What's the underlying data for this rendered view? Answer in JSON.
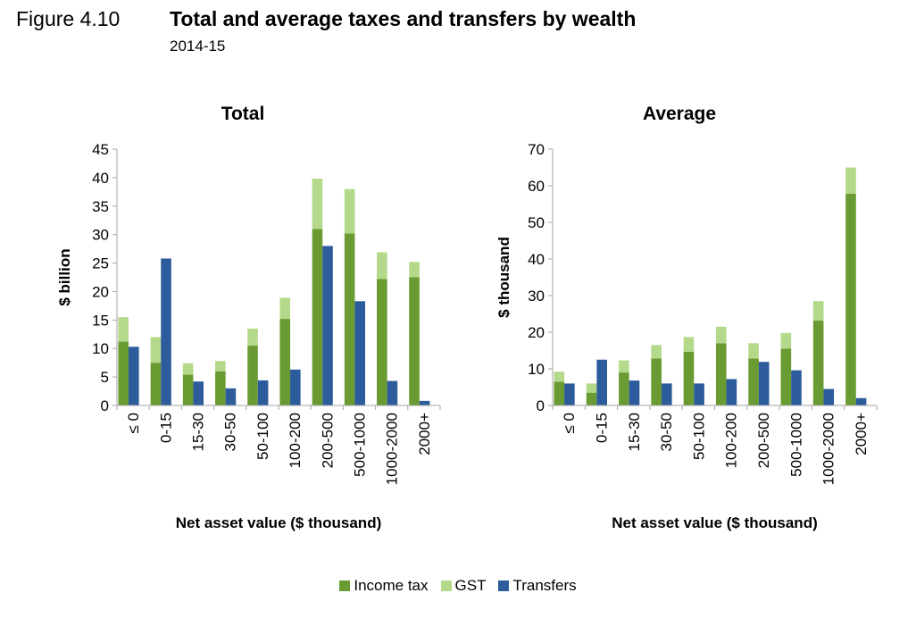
{
  "header": {
    "figure_label": "Figure 4.10",
    "title": "Total and average taxes and transfers by wealth",
    "subtitle": "2014-15"
  },
  "colors": {
    "income_tax": "#6a9a32",
    "gst": "#b5d98a",
    "transfers": "#2c5c9c",
    "axis": "#a6a6a6"
  },
  "legend": [
    {
      "label": "Income tax",
      "color_key": "income_tax"
    },
    {
      "label": "GST",
      "color_key": "gst"
    },
    {
      "label": "Transfers",
      "color_key": "transfers"
    }
  ],
  "chart_data": [
    {
      "type": "bar",
      "stacked_pairs": true,
      "title": "Total",
      "xlabel": "Net asset value ($ thousand)",
      "ylabel": "$ billion",
      "ylim": [
        0,
        45
      ],
      "yticks": [
        0,
        5,
        10,
        15,
        20,
        25,
        30,
        35,
        40,
        45
      ],
      "categories": [
        "≤ 0",
        "0-15",
        "15-30",
        "30-50",
        "50-100",
        "100-200",
        "200-500",
        "500-1000",
        "1000-2000",
        "2000+"
      ],
      "series": [
        {
          "name": "Income tax",
          "values": [
            11.2,
            7.5,
            5.4,
            6.0,
            10.5,
            15.2,
            31.0,
            30.2,
            22.2,
            22.5
          ]
        },
        {
          "name": "GST",
          "values": [
            4.3,
            4.5,
            2.0,
            1.8,
            3.0,
            3.7,
            8.8,
            7.8,
            4.7,
            2.7
          ]
        },
        {
          "name": "Transfers",
          "values": [
            10.3,
            25.8,
            4.2,
            3.0,
            4.4,
            6.3,
            28.0,
            18.3,
            4.3,
            0.8
          ]
        }
      ]
    },
    {
      "type": "bar",
      "stacked_pairs": true,
      "title": "Average",
      "xlabel": "Net asset value ($ thousand)",
      "ylabel": "$ thousand",
      "ylim": [
        0,
        70
      ],
      "yticks": [
        0,
        10,
        20,
        30,
        40,
        50,
        60,
        70
      ],
      "categories": [
        "≤ 0",
        "0-15",
        "15-30",
        "30-50",
        "50-100",
        "100-200",
        "200-500",
        "500-1000",
        "1000-2000",
        "2000+"
      ],
      "series": [
        {
          "name": "Income tax",
          "values": [
            6.5,
            3.5,
            9.0,
            12.8,
            14.7,
            17.0,
            12.8,
            15.5,
            23.2,
            57.8
          ]
        },
        {
          "name": "GST",
          "values": [
            2.7,
            2.5,
            3.3,
            3.7,
            4.0,
            4.5,
            4.2,
            4.3,
            5.3,
            7.2
          ]
        },
        {
          "name": "Transfers",
          "values": [
            6.0,
            12.5,
            6.8,
            6.0,
            6.0,
            7.2,
            11.9,
            9.6,
            4.5,
            2.0
          ]
        }
      ]
    }
  ]
}
